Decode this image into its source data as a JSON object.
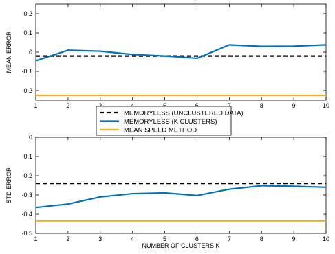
{
  "chart_data": [
    {
      "type": "line",
      "xlabel": "",
      "ylabel": "MEAN ERROR",
      "xlim": [
        1,
        10
      ],
      "ylim": [
        -0.25,
        0.25
      ],
      "xticks": [
        "1",
        "2",
        "3",
        "4",
        "5",
        "6",
        "7",
        "8",
        "9",
        "10"
      ],
      "yticks": [
        "0.2",
        "0.1",
        "0",
        "-0.1",
        "-0.2"
      ],
      "x": [
        1,
        2,
        3,
        4,
        5,
        6,
        7,
        8,
        9,
        10
      ],
      "series": [
        {
          "name": "MEMORYLESS (UNCLUSTERED DATA)",
          "style": "dashed",
          "color": "#000000",
          "values": [
            -0.02,
            -0.02,
            -0.02,
            -0.02,
            -0.02,
            -0.02,
            -0.02,
            -0.02,
            -0.02,
            -0.02
          ]
        },
        {
          "name": "MEMORYLESS (K CLUSTERS)",
          "style": "solid",
          "color": "#0072BD",
          "values": [
            -0.045,
            0.01,
            0.005,
            -0.012,
            -0.02,
            -0.032,
            0.038,
            0.03,
            0.031,
            0.038
          ]
        },
        {
          "name": "MEAN SPEED METHOD",
          "style": "solid",
          "color": "#EDB120",
          "values": [
            -0.225,
            -0.225,
            -0.225,
            -0.225,
            -0.225,
            -0.225,
            -0.225,
            -0.225,
            -0.225,
            -0.225
          ]
        }
      ],
      "grid": false
    },
    {
      "type": "line",
      "xlabel": "NUMBER OF CLUSTERS K",
      "ylabel": "STD ERROR",
      "xlim": [
        1,
        10
      ],
      "ylim": [
        -0.5,
        0
      ],
      "xticks": [
        "1",
        "2",
        "3",
        "4",
        "5",
        "6",
        "7",
        "8",
        "9",
        "10"
      ],
      "yticks": [
        "0",
        "-0.1",
        "-0.2",
        "-0.3",
        "-0.4",
        "-0.5"
      ],
      "x": [
        1,
        2,
        3,
        4,
        5,
        6,
        7,
        8,
        9,
        10
      ],
      "series": [
        {
          "name": "MEMORYLESS (UNCLUSTERED DATA)",
          "style": "dashed",
          "color": "#000000",
          "values": [
            -0.24,
            -0.24,
            -0.24,
            -0.24,
            -0.24,
            -0.24,
            -0.24,
            -0.24,
            -0.24,
            -0.24
          ]
        },
        {
          "name": "MEMORYLESS (K CLUSTERS)",
          "style": "solid",
          "color": "#0072BD",
          "values": [
            -0.365,
            -0.347,
            -0.31,
            -0.293,
            -0.289,
            -0.303,
            -0.27,
            -0.252,
            -0.255,
            -0.26
          ]
        },
        {
          "name": "MEAN SPEED METHOD",
          "style": "solid",
          "color": "#EDB120",
          "values": [
            -0.435,
            -0.435,
            -0.435,
            -0.435,
            -0.435,
            -0.435,
            -0.435,
            -0.435,
            -0.435,
            -0.435
          ]
        }
      ],
      "grid": false
    }
  ],
  "legend": {
    "placement": "between-panels",
    "entries": [
      {
        "label": "MEMORYLESS (UNCLUSTERED DATA)",
        "style": "dashed",
        "color": "#000000"
      },
      {
        "label": "MEMORYLESS (K CLUSTERS)",
        "style": "solid",
        "color": "#0072BD"
      },
      {
        "label": "MEAN SPEED METHOD",
        "style": "solid",
        "color": "#EDB120"
      }
    ]
  }
}
